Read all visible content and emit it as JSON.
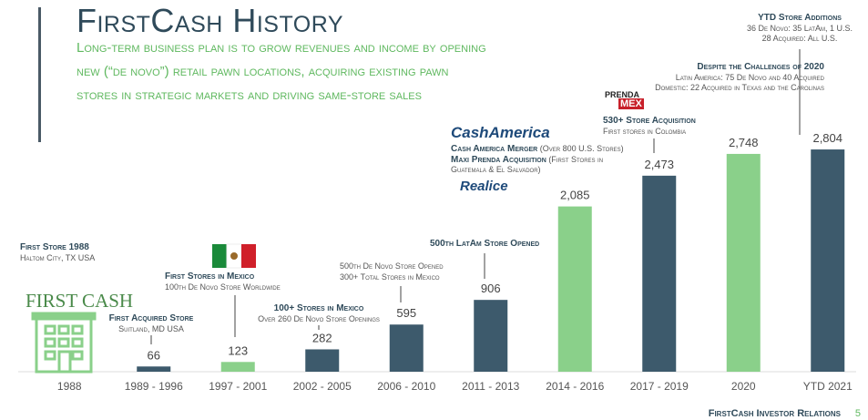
{
  "chart_data": {
    "type": "bar",
    "title": "FirstCash History",
    "subtitle": [
      "Long-term business plan is to grow revenues and income by opening",
      "new (“de novo”) retail pawn locations, acquiring existing pawn",
      "stores in strategic markets and driving same-store sales"
    ],
    "categories": [
      "1988",
      "1989 - 1996",
      "1997 - 2001",
      "2002 - 2005",
      "2006 - 2010",
      "2011 - 2013",
      "2014 - 2016",
      "2017 - 2019",
      "2020",
      "YTD 2021"
    ],
    "values": [
      null,
      66,
      123,
      282,
      595,
      906,
      2085,
      2473,
      2748,
      2804
    ],
    "value_labels": [
      null,
      "66",
      "123",
      "282",
      "595",
      "906",
      "2,085",
      "2,473",
      "2,748",
      "2,804"
    ],
    "colors": [
      "#3d5a6c",
      "#3d5a6c",
      "#8ad08a",
      "#3d5a6c",
      "#3d5a6c",
      "#3d5a6c",
      "#8ad08a",
      "#3d5a6c",
      "#8ad08a",
      "#3d5a6c"
    ],
    "ylim": [
      0,
      3000
    ],
    "annotations": [
      {
        "heading": "YTD Store Additions",
        "lines": [
          "36 De Novo: 35 LatAm, 1 U.S.",
          "28 Acquired: All U.S."
        ]
      },
      {
        "heading": "Despite the Challenges of 2020",
        "lines": [
          "Latin America: 75 De Novo and 40 Acquired",
          "Domestic: 22 Acquired in Texas and the Carolinas"
        ]
      },
      {
        "heading": "530+ Store Acquisition",
        "lines": [
          "First stores in Colombia"
        ]
      },
      {
        "heading": "Cash America Merger",
        "lines": [
          " (Over 800 U.S. Stores)",
          "Maxi Prenda Acquisition",
          " (First Stores in",
          "Guatemala & El Salvador)"
        ]
      },
      {
        "heading": "500th LatAm Store Opened",
        "lines": []
      },
      {
        "heading": "",
        "lines": [
          "500th De Novo Store Opened",
          "300+ Total Stores in Mexico"
        ]
      },
      {
        "heading": "100+ Stores in Mexico",
        "lines": [
          "Over 260 De Novo Store Openings"
        ]
      },
      {
        "heading": "First Stores in Mexico",
        "lines": [
          "100th De Novo Store Worldwide"
        ]
      },
      {
        "heading": "First Acquired Store",
        "lines": [
          "Suitland, MD USA"
        ]
      },
      {
        "heading": "First Store 1988",
        "lines": [
          "Haltom City, TX USA"
        ]
      }
    ],
    "logos": [
      "FIRST CASH",
      "CashAmerica",
      "PRENDA",
      "MEX",
      "Realice"
    ],
    "footer": "FirstCash Investor Relations",
    "page_number": 5
  }
}
